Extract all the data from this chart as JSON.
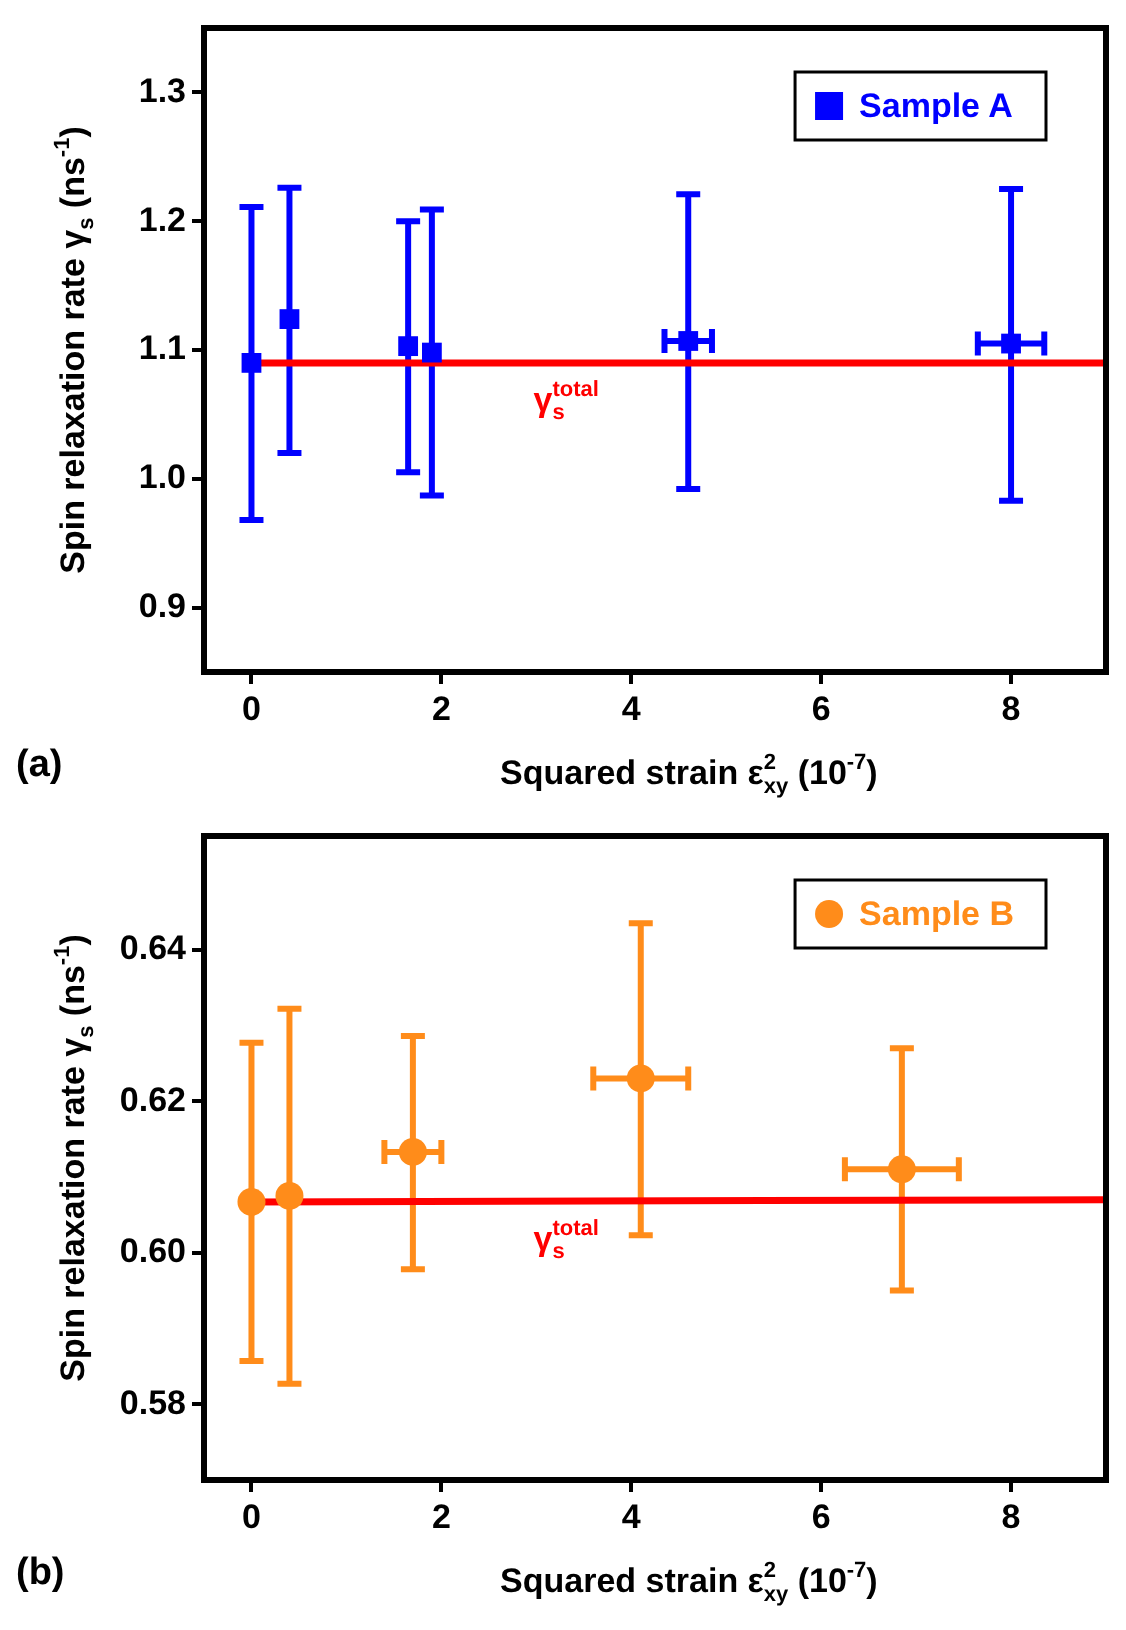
{
  "chart_data": [
    {
      "type": "scatter",
      "xlabel": "Squared strain ε$^{2}$$_{xy}$ (10$^{-7}$)",
      "ylabel": "Spin relaxation rate γ$_{s}$ (ns$^{-1}$)",
      "annotations": [
        "(a)"
      ],
      "xlim": [
        -0.5,
        9
      ],
      "xticks": [
        0,
        2,
        4,
        6,
        8
      ],
      "ylim": [
        0.85,
        1.35
      ],
      "yticks": [
        0.9,
        {
          "value": 1.0,
          "label": "1.0"
        },
        1.1,
        1.2,
        1.3
      ],
      "legend": "top right",
      "grid": false,
      "series": [
        {
          "name": "Sample A",
          "color": "#0000ff",
          "marker": "square",
          "x": [
            0,
            0.4,
            1.65,
            1.9,
            4.6,
            8.0
          ],
          "values": [
            1.09,
            1.124,
            1.103,
            1.098,
            1.107,
            1.105
          ],
          "errors": [
            [
              0.968,
              1.211
            ],
            [
              1.02,
              1.226
            ],
            [
              1.005,
              1.2
            ],
            [
              0.987,
              1.209
            ],
            [
              0.992,
              1.221
            ],
            [
              0.983,
              1.225
            ]
          ],
          "xerrors": [
            null,
            null,
            null,
            null,
            0.25,
            0.35
          ]
        },
        {
          "name": "γ$_{s}$$^{total}$",
          "type": "line",
          "color": "#ff0000",
          "marker": "none",
          "x": [
            0,
            9
          ],
          "values": [
            1.09,
            1.09
          ]
        }
      ]
    },
    {
      "type": "scatter",
      "xlabel": "Squared strain ε$^{2}$$_{xy}$ (10$^{-7}$)",
      "ylabel": "Spin relaxation rate γ$_{s}$ (ns$^{-1}$)",
      "annotations": [
        "(b)"
      ],
      "xlim": [
        -0.5,
        9
      ],
      "xticks": [
        0,
        2,
        4,
        6,
        8
      ],
      "ylim": [
        0.57,
        0.655
      ],
      "yticks": [
        0.58,
        {
          "value": 0.6,
          "label": "0.60"
        },
        0.62,
        0.64
      ],
      "legend": "top right",
      "grid": false,
      "series": [
        {
          "name": "Sample B",
          "color": "#ff8c1a",
          "marker": "circle",
          "x": [
            0,
            0.4,
            1.7,
            4.1,
            6.85
          ],
          "values": [
            0.6067,
            0.6075,
            0.6133,
            0.623,
            0.611
          ],
          "errors": [
            [
              0.5857,
              0.6277
            ],
            [
              0.5827,
              0.6322
            ],
            [
              0.5978,
              0.6286
            ],
            [
              0.6023,
              0.6435
            ],
            [
              0.595,
              0.627
            ]
          ],
          "xerrors": [
            null,
            null,
            0.3,
            0.5,
            0.6
          ]
        },
        {
          "name": "γ$_{s}$$^{total}$",
          "type": "line",
          "color": "#ff0000",
          "marker": "none",
          "x": [
            0,
            9
          ],
          "values": [
            0.6067,
            0.607
          ]
        }
      ]
    }
  ]
}
